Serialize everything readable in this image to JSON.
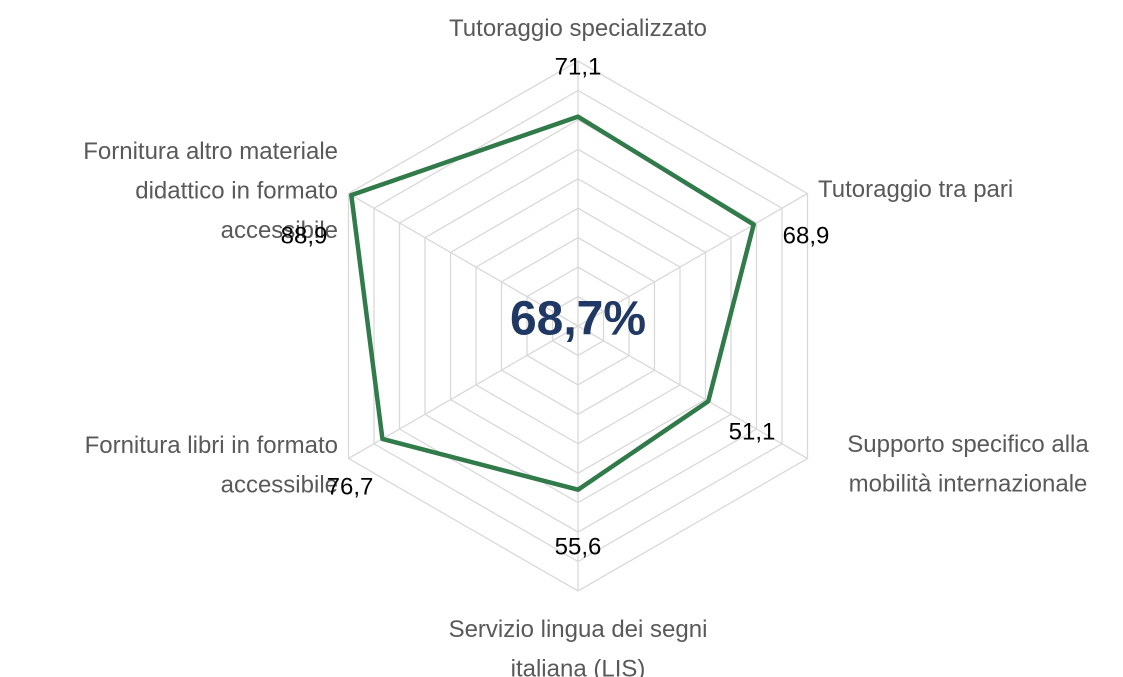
{
  "chart_data": {
    "type": "radar",
    "center_label": "68,7%",
    "categories": [
      "Tutoraggio specializzato",
      "Tutoraggio tra pari",
      "Supporto specifico alla\nmobilità internazionale",
      "Servizio lingua dei segni\nitaliana (LIS)",
      "Fornitura libri in formato\naccessibile",
      "Fornitura altro materiale\ndidattico in formato\naccessibile"
    ],
    "values": [
      71.1,
      68.9,
      51.1,
      55.6,
      76.7,
      88.9
    ],
    "value_labels": [
      "71,1",
      "68,9",
      "51,1",
      "55,6",
      "76,7",
      "88,9"
    ],
    "color": "#317a4a",
    "ylim": [
      0,
      90
    ],
    "yticks": [
      0,
      10,
      20,
      30,
      40,
      50,
      60,
      70,
      80,
      90
    ],
    "grid": true
  }
}
